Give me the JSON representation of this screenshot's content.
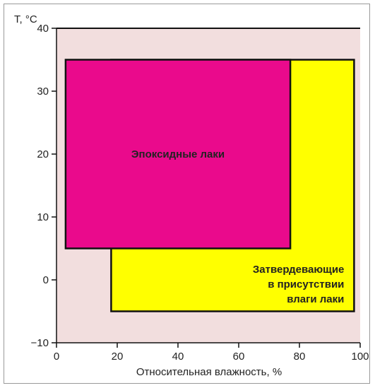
{
  "chart_data": {
    "type": "area",
    "title": "",
    "xlabel": "Относительная влажность, %",
    "ylabel": "T, °C",
    "xlim": [
      0,
      100
    ],
    "ylim": [
      -10,
      40
    ],
    "x_ticks": [
      "0",
      "20",
      "40",
      "60",
      "80",
      "100"
    ],
    "y_ticks": [
      "-10",
      "0",
      "10",
      "20",
      "30",
      "40"
    ],
    "grid": false,
    "background_color": "#f2dede",
    "regions": [
      {
        "name": "Затвердевающие в присутствии влаги лаки",
        "label_lines": [
          "Затвердевающие",
          "в присутствии",
          "влаги лаки"
        ],
        "x_range": [
          18,
          98
        ],
        "y_range": [
          -5,
          35
        ],
        "color": "#ffff00"
      },
      {
        "name": "Эпоксидные лаки",
        "label_lines": [
          "Эпоксидные лаки"
        ],
        "x_range": [
          3,
          77
        ],
        "y_range": [
          5,
          35
        ],
        "color": "#ea0a8c"
      }
    ]
  }
}
